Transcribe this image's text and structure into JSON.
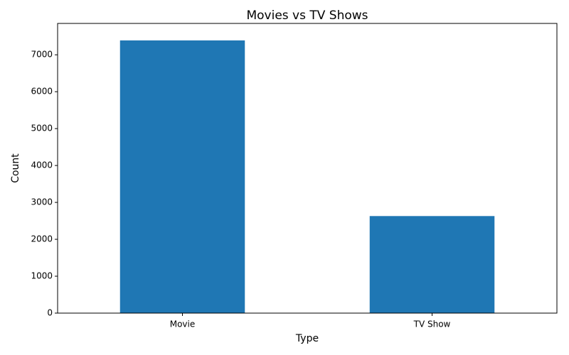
{
  "chart_data": {
    "type": "bar",
    "title": "Movies vs TV Shows",
    "categories": [
      "Movie",
      "TV Show"
    ],
    "values": [
      7390,
      2630
    ],
    "color": "#1f77b4",
    "xlabel": "Type",
    "ylabel": "Count",
    "ylim": [
      0,
      7850
    ],
    "yticks": [
      0,
      1000,
      2000,
      3000,
      4000,
      5000,
      6000,
      7000
    ],
    "grid": false
  }
}
